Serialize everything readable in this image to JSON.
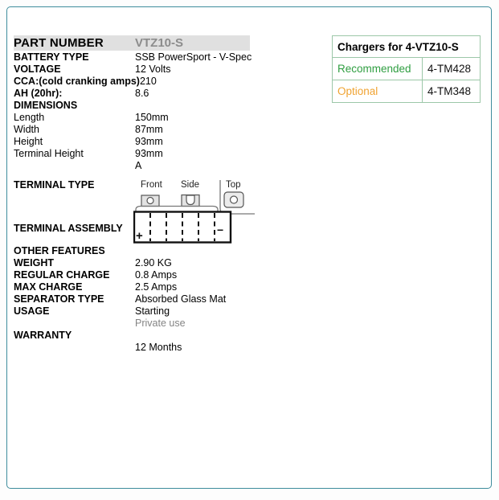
{
  "page": {
    "border_color": "#3e8c9c",
    "background": "#ffffff"
  },
  "spec": {
    "header": {
      "label": "PART NUMBER",
      "value": "VTZ10-S",
      "value_color": "#8c8c8c",
      "bg": "#e0e0e0"
    },
    "rows_top": [
      {
        "label": "BATTERY TYPE",
        "value": "SSB PowerSport - V-Spec"
      },
      {
        "label": "VOLTAGE",
        "value": "12 Volts"
      },
      {
        "label": "CCA:(cold cranking amps)",
        "value": "210"
      },
      {
        "label": "AH (20hr):",
        "value": "8.6"
      },
      {
        "label": "DIMENSIONS",
        "value": ""
      },
      {
        "label": "Length",
        "value": "150mm",
        "plain": true
      },
      {
        "label": "Width",
        "value": "87mm",
        "plain": true
      },
      {
        "label": "Height",
        "value": "93mm",
        "plain": true
      },
      {
        "label": "Terminal Height",
        "value": "93mm",
        "plain": true
      },
      {
        "label": "",
        "value": "A",
        "plain": true
      }
    ],
    "terminal": {
      "type_label": "TERMINAL TYPE",
      "assembly_label": "TERMINAL ASSEMBLY",
      "views": [
        "Front",
        "Side",
        "Top"
      ],
      "battery": {
        "positive": "+",
        "negative": "−",
        "cells": 6
      }
    },
    "rows_bottom": [
      {
        "label": "OTHER FEATURES",
        "value": ""
      },
      {
        "label": "WEIGHT",
        "value": "2.90 KG"
      },
      {
        "label": "REGULAR CHARGE",
        "value": "0.8 Amps"
      },
      {
        "label": "MAX CHARGE",
        "value": "2.5 Amps"
      },
      {
        "label": "SEPARATOR TYPE",
        "value": "Absorbed Glass Mat"
      },
      {
        "label": "USAGE",
        "value": "Starting"
      },
      {
        "label": "",
        "value": "Private use",
        "muted": true
      },
      {
        "label": "WARRANTY",
        "value": ""
      },
      {
        "label": "",
        "value": "12 Months"
      }
    ]
  },
  "chargers": {
    "title": "Chargers for 4-VTZ10-S",
    "border_color": "#9cc7a8",
    "rows": [
      {
        "type": "Recommended",
        "model": "4-TM428",
        "type_color": "#2f9e41"
      },
      {
        "type": "Optional",
        "model": "4-TM348",
        "type_color": "#f0a332"
      }
    ]
  }
}
